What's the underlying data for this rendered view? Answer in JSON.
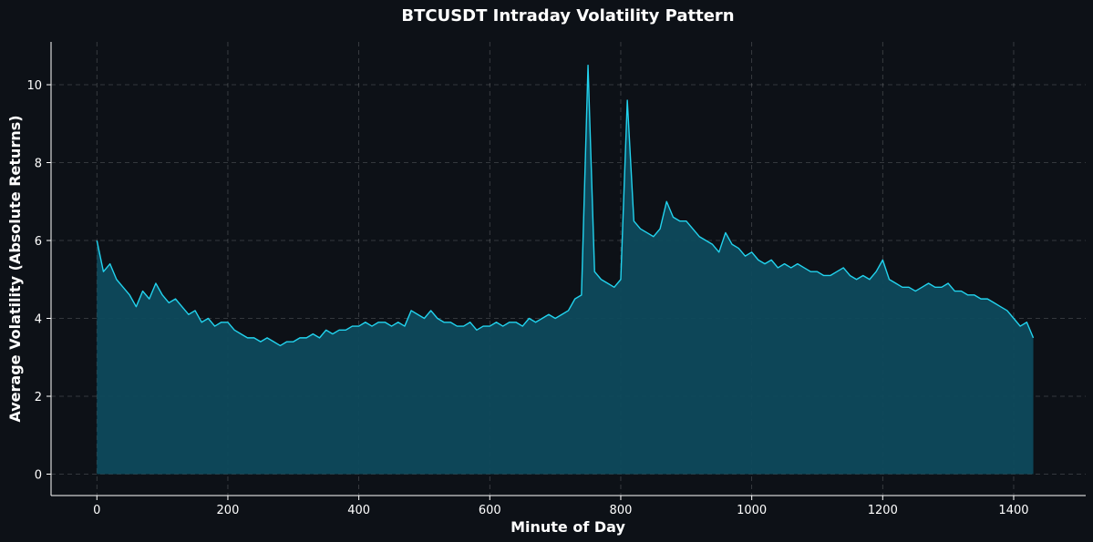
{
  "chart_data": {
    "type": "area",
    "title": "BTCUSDT Intraday Volatility Pattern",
    "xlabel": "Minute of Day",
    "ylabel": "Average Volatility (Absolute Returns)",
    "xlim": [
      -70,
      1510
    ],
    "ylim": [
      -0.55,
      11.1
    ],
    "xticks": [
      0,
      200,
      400,
      600,
      800,
      1000,
      1200,
      1400
    ],
    "yticks": [
      0,
      2,
      4,
      6,
      8,
      10
    ],
    "grid": true,
    "legend": "none",
    "series": [
      {
        "x_step": 10,
        "x_start": 0,
        "values": [
          6.0,
          5.2,
          5.4,
          5.0,
          4.8,
          4.6,
          4.3,
          4.7,
          4.5,
          4.9,
          4.6,
          4.4,
          4.5,
          4.3,
          4.1,
          4.2,
          3.9,
          4.0,
          3.8,
          3.9,
          3.9,
          3.7,
          3.6,
          3.5,
          3.5,
          3.4,
          3.5,
          3.4,
          3.3,
          3.4,
          3.4,
          3.5,
          3.5,
          3.6,
          3.5,
          3.7,
          3.6,
          3.7,
          3.7,
          3.8,
          3.8,
          3.9,
          3.8,
          3.9,
          3.9,
          3.8,
          3.9,
          3.8,
          4.2,
          4.1,
          4.0,
          4.2,
          4.0,
          3.9,
          3.9,
          3.8,
          3.8,
          3.9,
          3.7,
          3.8,
          3.8,
          3.9,
          3.8,
          3.9,
          3.9,
          3.8,
          4.0,
          3.9,
          4.0,
          4.1,
          4.0,
          4.1,
          4.2,
          4.5,
          4.6,
          10.5,
          5.2,
          5.0,
          4.9,
          4.8,
          5.0,
          9.6,
          6.5,
          6.3,
          6.2,
          6.1,
          6.3,
          7.0,
          6.6,
          6.5,
          6.5,
          6.3,
          6.1,
          6.0,
          5.9,
          5.7,
          6.2,
          5.9,
          5.8,
          5.6,
          5.7,
          5.5,
          5.4,
          5.5,
          5.3,
          5.4,
          5.3,
          5.4,
          5.3,
          5.2,
          5.2,
          5.1,
          5.1,
          5.2,
          5.3,
          5.1,
          5.0,
          5.1,
          5.0,
          5.2,
          5.5,
          5.0,
          4.9,
          4.8,
          4.8,
          4.7,
          4.8,
          4.9,
          4.8,
          4.8,
          4.9,
          4.7,
          4.7,
          4.6,
          4.6,
          4.5,
          4.5,
          4.4,
          4.3,
          4.2,
          4.0,
          3.8,
          3.9,
          3.5
        ]
      }
    ],
    "colors": {
      "line": "#22d3ee",
      "fill": "#0e4a5c",
      "background": "#0d1117"
    }
  }
}
